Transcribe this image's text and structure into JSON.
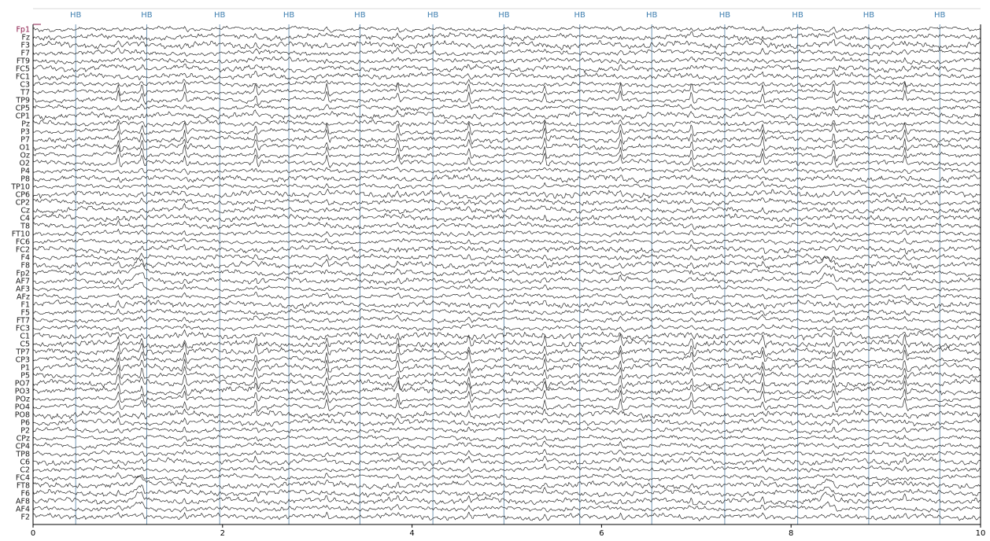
{
  "chart_data": {
    "type": "line",
    "title": "",
    "xlabel": "",
    "ylabel": "",
    "xlim": [
      0,
      10
    ],
    "x_ticks": [
      0,
      2,
      4,
      6,
      8,
      10
    ],
    "grid": false,
    "legend": "none",
    "channels": [
      "Fp1",
      "Fz",
      "F3",
      "F7",
      "FT9",
      "FC5",
      "FC1",
      "C3",
      "T7",
      "TP9",
      "CP5",
      "CP1",
      "Pz",
      "P3",
      "P7",
      "O1",
      "Oz",
      "O2",
      "P4",
      "P8",
      "TP10",
      "CP6",
      "CP2",
      "Cz",
      "C4",
      "T8",
      "FT10",
      "FC6",
      "FC2",
      "F4",
      "F8",
      "Fp2",
      "AF7",
      "AF3",
      "AFz",
      "F1",
      "F5",
      "FT7",
      "FC3",
      "C1",
      "C5",
      "TP7",
      "CP3",
      "P1",
      "P5",
      "PO7",
      "PO3",
      "POz",
      "PO4",
      "PO8",
      "P6",
      "P2",
      "CPz",
      "CP4",
      "TP8",
      "C6",
      "C2",
      "FC4",
      "FT8",
      "F6",
      "AF8",
      "AF4",
      "F2"
    ],
    "annotations": {
      "label": "HB",
      "times": [
        0.45,
        1.2,
        1.97,
        2.7,
        3.45,
        4.22,
        4.97,
        5.77,
        6.53,
        7.3,
        8.07,
        8.82,
        9.57
      ]
    },
    "event_times": [
      0.9,
      1.15,
      1.6,
      2.35,
      3.1,
      3.85,
      4.6,
      5.4,
      6.2,
      6.95,
      7.7,
      8.45,
      9.2
    ],
    "colors": {
      "trace": "#2b2b2b",
      "annotation_line": "#5b86a8",
      "annotation_text": "#3f7fb0",
      "axis": "#000000",
      "channel_label": "#1a1a1a",
      "first_channel_label": "#8b1a4a"
    }
  }
}
